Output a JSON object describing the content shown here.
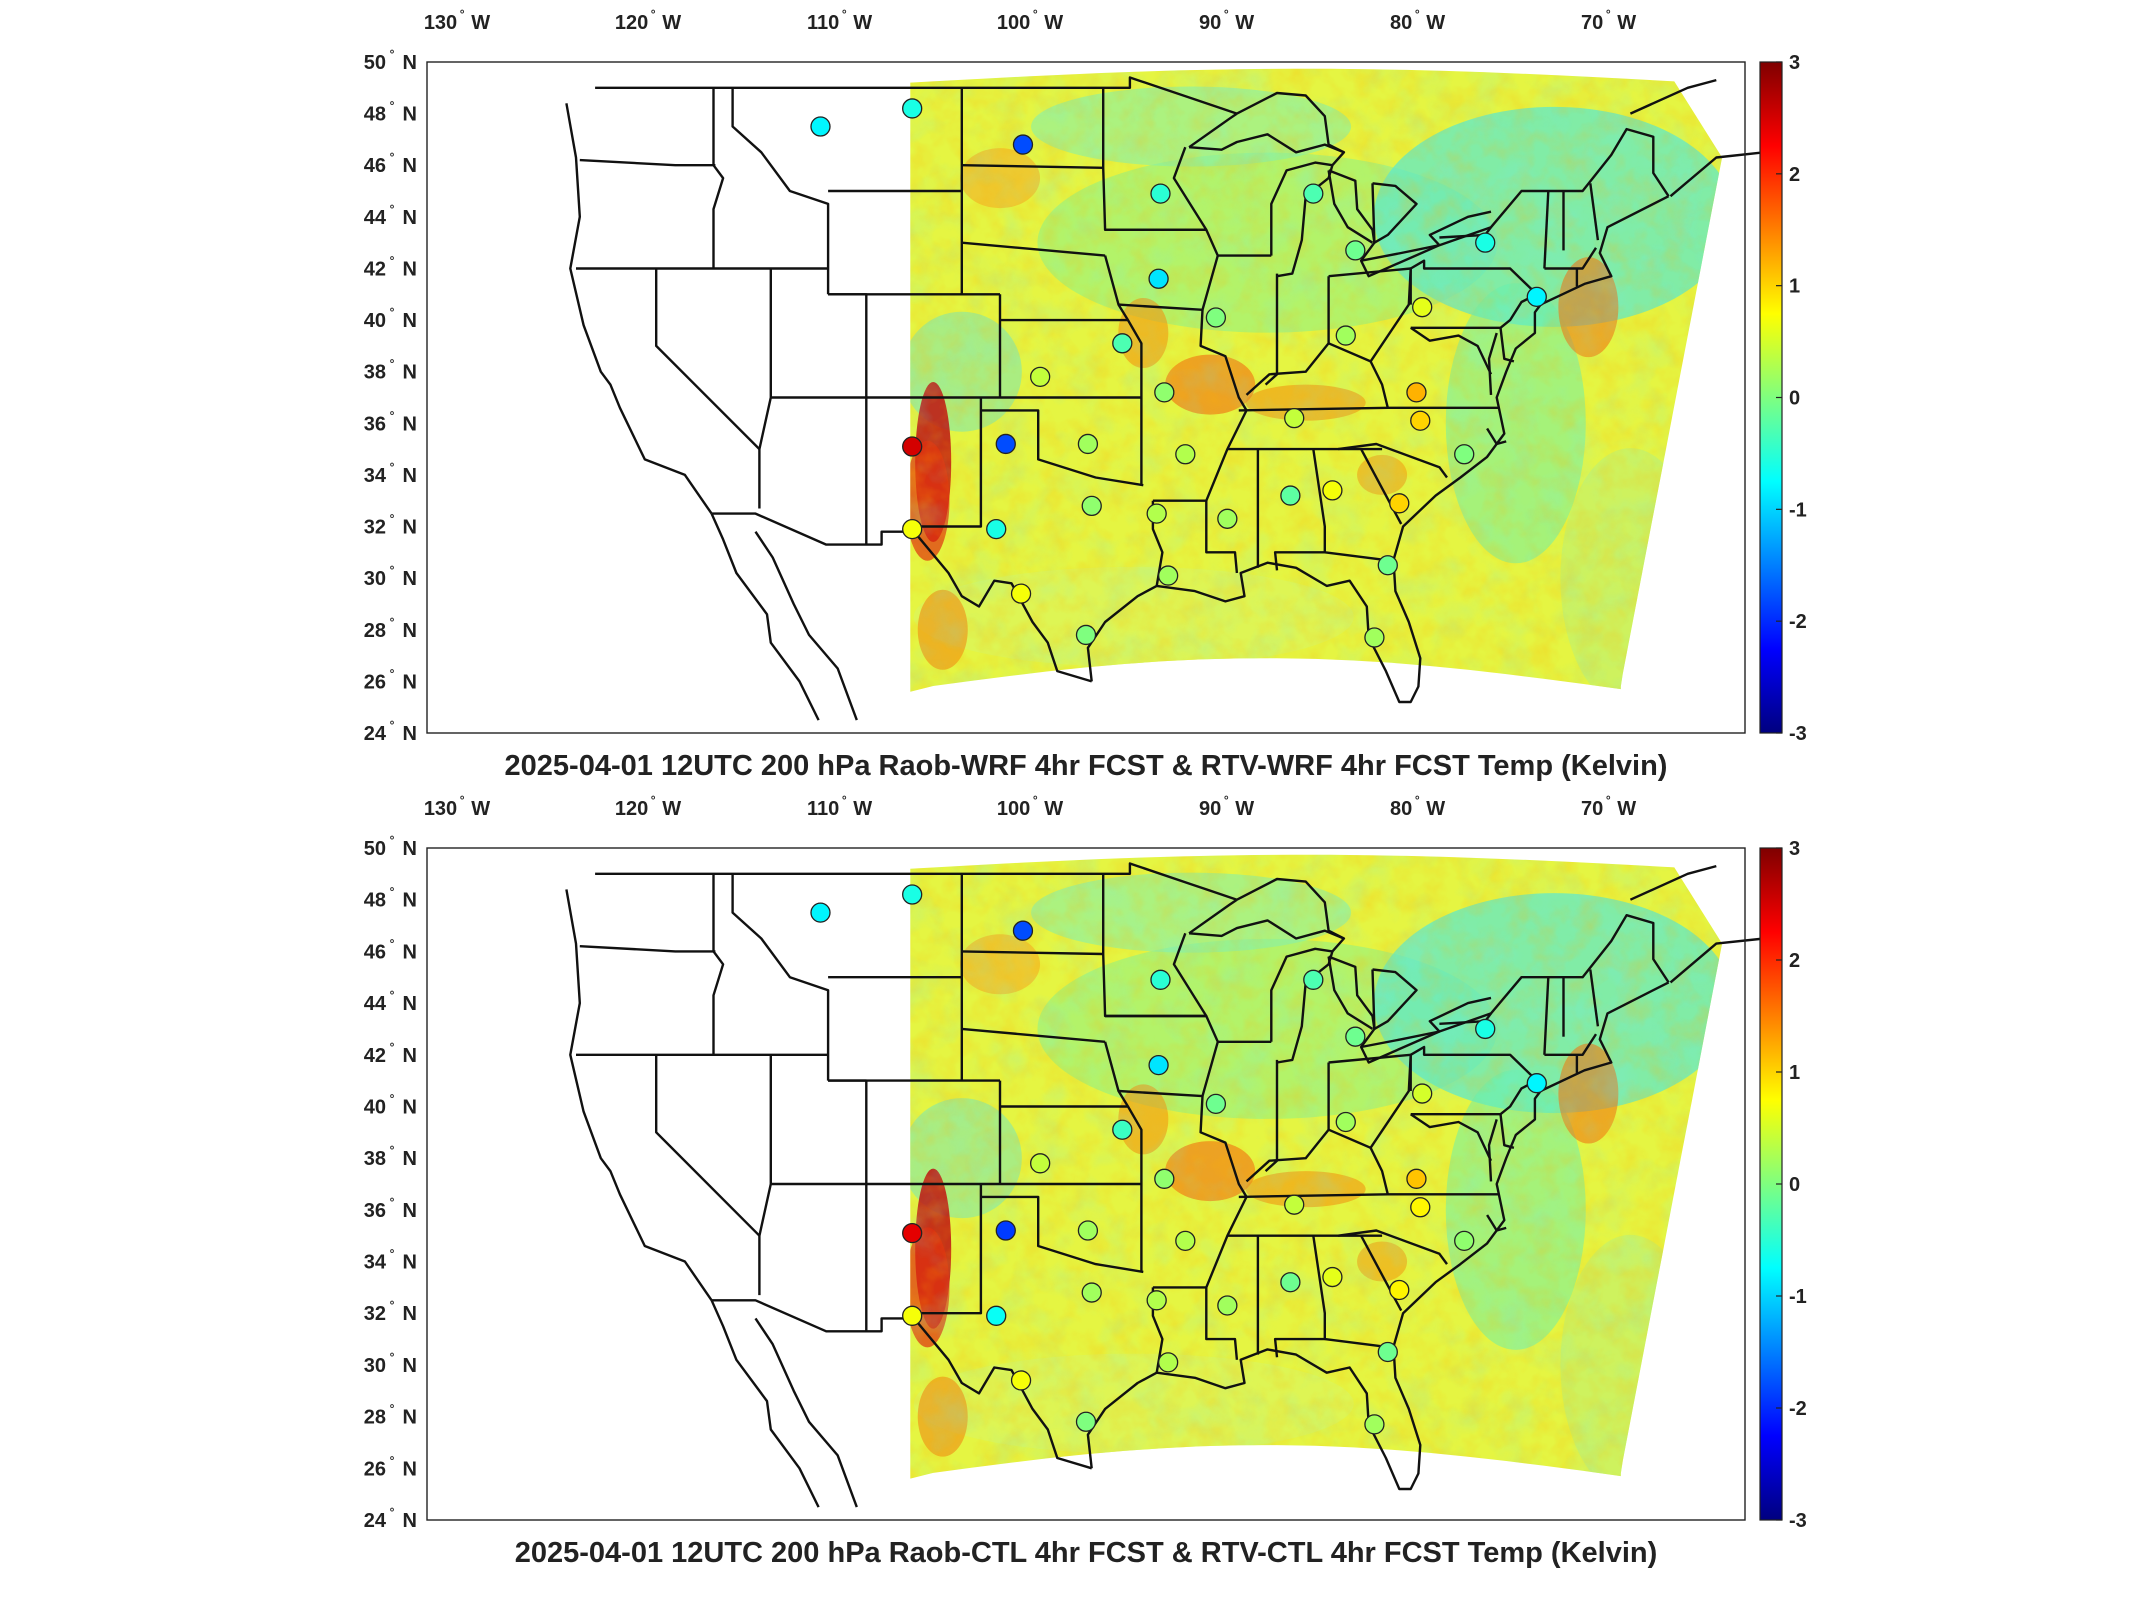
{
  "colors": {
    "colormap": [
      "#00007f",
      "#0000ff",
      "#007fff",
      "#00ffff",
      "#7fff7f",
      "#ffff00",
      "#ff7f00",
      "#ff0000",
      "#7f0000"
    ],
    "background": "#ffffff",
    "border_lines": "#111111"
  },
  "map_extent": {
    "lon_min": -132,
    "lon_max": -63,
    "lat_min": 24,
    "lat_max": 50
  },
  "colorbar": {
    "min": -3,
    "max": 3,
    "ticks": [
      "3",
      "2",
      "1",
      "0",
      "-1",
      "-2",
      "-3"
    ]
  },
  "lon_ticks": [
    {
      "value": -130,
      "num": "130",
      "hemi": "W"
    },
    {
      "value": -120,
      "num": "120",
      "hemi": "W"
    },
    {
      "value": -110,
      "num": "110",
      "hemi": "W"
    },
    {
      "value": -100,
      "num": "100",
      "hemi": "W"
    },
    {
      "value": -90,
      "num": "90",
      "hemi": "W"
    },
    {
      "value": -80,
      "num": "80",
      "hemi": "W"
    },
    {
      "value": -70,
      "num": "70",
      "hemi": "W"
    }
  ],
  "lat_ticks": [
    {
      "value": 50,
      "num": "50",
      "hemi": "N"
    },
    {
      "value": 48,
      "num": "48",
      "hemi": "N"
    },
    {
      "value": 46,
      "num": "46",
      "hemi": "N"
    },
    {
      "value": 44,
      "num": "44",
      "hemi": "N"
    },
    {
      "value": 42,
      "num": "42",
      "hemi": "N"
    },
    {
      "value": 40,
      "num": "40",
      "hemi": "N"
    },
    {
      "value": 38,
      "num": "38",
      "hemi": "N"
    },
    {
      "value": 36,
      "num": "36",
      "hemi": "N"
    },
    {
      "value": 34,
      "num": "34",
      "hemi": "N"
    },
    {
      "value": 32,
      "num": "32",
      "hemi": "N"
    },
    {
      "value": 30,
      "num": "30",
      "hemi": "N"
    },
    {
      "value": 28,
      "num": "28",
      "hemi": "N"
    },
    {
      "value": 26,
      "num": "26",
      "hemi": "N"
    },
    {
      "value": 24,
      "num": "24",
      "hemi": "N"
    }
  ],
  "panels": [
    {
      "title": "2025-04-01 12UTC 200 hPa Raob-WRF 4hr FCST & RTV-WRF 4hr FCST Temp (Kelvin)",
      "stations": [
        {
          "lon": -111.4,
          "lat": 47.5,
          "value": -0.8
        },
        {
          "lon": -106.6,
          "lat": 48.2,
          "value": -0.6
        },
        {
          "lon": -100.8,
          "lat": 46.8,
          "value": -1.8
        },
        {
          "lon": -93.6,
          "lat": 44.9,
          "value": -0.5
        },
        {
          "lon": -85.6,
          "lat": 44.9,
          "value": -0.3
        },
        {
          "lon": -83.4,
          "lat": 42.7,
          "value": -0.1
        },
        {
          "lon": -76.6,
          "lat": 43.0,
          "value": -0.6
        },
        {
          "lon": -73.9,
          "lat": 40.9,
          "value": -0.8
        },
        {
          "lon": -93.7,
          "lat": 41.6,
          "value": -0.9
        },
        {
          "lon": -90.7,
          "lat": 40.1,
          "value": 0.0
        },
        {
          "lon": -83.9,
          "lat": 39.4,
          "value": 0.2
        },
        {
          "lon": -79.9,
          "lat": 40.5,
          "value": 0.6
        },
        {
          "lon": -95.6,
          "lat": 39.1,
          "value": -0.3
        },
        {
          "lon": -99.9,
          "lat": 37.8,
          "value": 0.4
        },
        {
          "lon": -93.4,
          "lat": 37.2,
          "value": 0.1
        },
        {
          "lon": -86.6,
          "lat": 36.2,
          "value": 0.4
        },
        {
          "lon": -80.2,
          "lat": 37.2,
          "value": 1.2
        },
        {
          "lon": -80.0,
          "lat": 36.1,
          "value": 1.0
        },
        {
          "lon": -106.6,
          "lat": 35.1,
          "value": 2.5
        },
        {
          "lon": -101.7,
          "lat": 35.2,
          "value": -1.8
        },
        {
          "lon": -97.4,
          "lat": 35.2,
          "value": 0.2
        },
        {
          "lon": -92.3,
          "lat": 34.8,
          "value": 0.3
        },
        {
          "lon": -86.8,
          "lat": 33.2,
          "value": -0.2
        },
        {
          "lon": -84.6,
          "lat": 33.4,
          "value": 0.7
        },
        {
          "lon": -77.7,
          "lat": 34.8,
          "value": 0.0
        },
        {
          "lon": -81.1,
          "lat": 32.9,
          "value": 1.0
        },
        {
          "lon": -106.6,
          "lat": 31.9,
          "value": 0.7
        },
        {
          "lon": -102.2,
          "lat": 31.9,
          "value": -0.6
        },
        {
          "lon": -97.2,
          "lat": 32.8,
          "value": 0.1
        },
        {
          "lon": -93.8,
          "lat": 32.5,
          "value": 0.3
        },
        {
          "lon": -90.1,
          "lat": 32.3,
          "value": 0.2
        },
        {
          "lon": -100.9,
          "lat": 29.4,
          "value": 0.7
        },
        {
          "lon": -93.2,
          "lat": 30.1,
          "value": 0.2
        },
        {
          "lon": -81.7,
          "lat": 30.5,
          "value": -0.1
        },
        {
          "lon": -97.5,
          "lat": 27.8,
          "value": 0.0
        },
        {
          "lon": -82.4,
          "lat": 27.7,
          "value": 0.2
        }
      ]
    },
    {
      "title": "2025-04-01 12UTC 200 hPa Raob-CTL 4hr FCST & RTV-CTL 4hr FCST Temp (Kelvin)",
      "stations": [
        {
          "lon": -111.4,
          "lat": 47.5,
          "value": -0.8
        },
        {
          "lon": -106.6,
          "lat": 48.2,
          "value": -0.6
        },
        {
          "lon": -100.8,
          "lat": 46.8,
          "value": -1.8
        },
        {
          "lon": -93.6,
          "lat": 44.9,
          "value": -0.5
        },
        {
          "lon": -85.6,
          "lat": 44.9,
          "value": -0.3
        },
        {
          "lon": -83.4,
          "lat": 42.7,
          "value": -0.1
        },
        {
          "lon": -76.6,
          "lat": 43.0,
          "value": -0.6
        },
        {
          "lon": -73.9,
          "lat": 40.9,
          "value": -0.8
        },
        {
          "lon": -93.7,
          "lat": 41.6,
          "value": -0.9
        },
        {
          "lon": -90.7,
          "lat": 40.1,
          "value": -0.1
        },
        {
          "lon": -83.9,
          "lat": 39.4,
          "value": 0.2
        },
        {
          "lon": -79.9,
          "lat": 40.5,
          "value": 0.5
        },
        {
          "lon": -95.6,
          "lat": 39.1,
          "value": -0.4
        },
        {
          "lon": -99.9,
          "lat": 37.8,
          "value": 0.4
        },
        {
          "lon": -93.4,
          "lat": 37.2,
          "value": 0.1
        },
        {
          "lon": -86.6,
          "lat": 36.2,
          "value": 0.4
        },
        {
          "lon": -80.2,
          "lat": 37.2,
          "value": 1.1
        },
        {
          "lon": -80.0,
          "lat": 36.1,
          "value": 0.8
        },
        {
          "lon": -106.6,
          "lat": 35.1,
          "value": 2.4
        },
        {
          "lon": -101.7,
          "lat": 35.2,
          "value": -1.9
        },
        {
          "lon": -97.4,
          "lat": 35.2,
          "value": 0.2
        },
        {
          "lon": -92.3,
          "lat": 34.8,
          "value": 0.3
        },
        {
          "lon": -86.8,
          "lat": 33.2,
          "value": -0.1
        },
        {
          "lon": -84.6,
          "lat": 33.4,
          "value": 0.6
        },
        {
          "lon": -77.7,
          "lat": 34.8,
          "value": 0.1
        },
        {
          "lon": -81.1,
          "lat": 32.9,
          "value": 0.8
        },
        {
          "lon": -106.6,
          "lat": 31.9,
          "value": 0.7
        },
        {
          "lon": -102.2,
          "lat": 31.9,
          "value": -0.7
        },
        {
          "lon": -97.2,
          "lat": 32.8,
          "value": 0.2
        },
        {
          "lon": -93.8,
          "lat": 32.5,
          "value": 0.3
        },
        {
          "lon": -90.1,
          "lat": 32.3,
          "value": 0.2
        },
        {
          "lon": -100.9,
          "lat": 29.4,
          "value": 0.7
        },
        {
          "lon": -93.2,
          "lat": 30.1,
          "value": 0.3
        },
        {
          "lon": -81.7,
          "lat": 30.5,
          "value": -0.1
        },
        {
          "lon": -97.5,
          "lat": 27.8,
          "value": 0.0
        },
        {
          "lon": -82.4,
          "lat": 27.7,
          "value": 0.2
        }
      ]
    }
  ]
}
